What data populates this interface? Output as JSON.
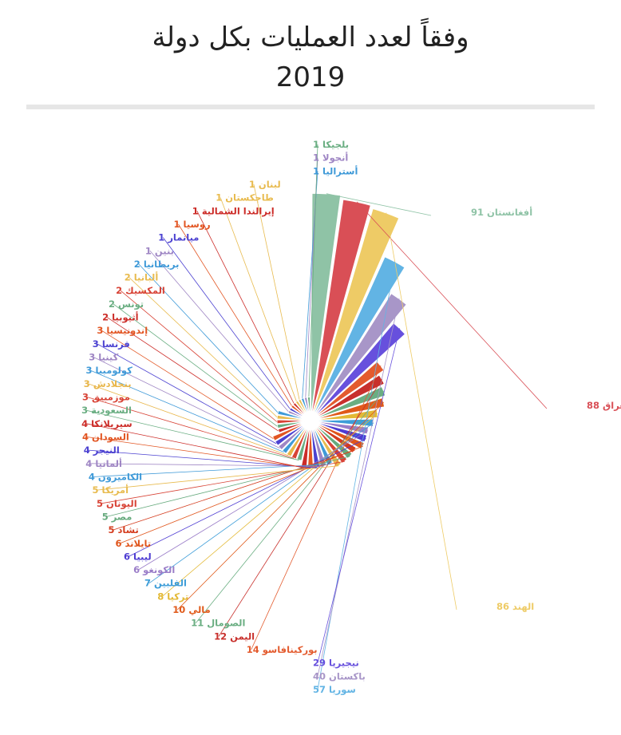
{
  "title": "وفقاً لعدد العمليات بكل دولة",
  "subtitle": "2019",
  "chart_data": {
    "type": "pie",
    "variant": "rose",
    "title": "وفقاً لعدد العمليات بكل دولة",
    "subtitle": "2019",
    "categories": [
      "أفغانستان",
      "العراق",
      "الهند",
      "سوريا",
      "باكستان",
      "نيجيريا",
      "بوركينافاسو",
      "اليمن",
      "الصومال",
      "مالي",
      "تركيا",
      "الفلبين",
      "الكونغو",
      "ليبيا",
      "تايلاند",
      "تشاد",
      "مصر",
      "اليونان",
      "أمريكا",
      "الكاميرون",
      "ألمانيا",
      "النيجر",
      "السودان",
      "سيريلانكا",
      "السعودية",
      "موزمبيق",
      "بنجلادش",
      "كولومبيا",
      "كينيا",
      "فرنسا",
      "إندونيسيا",
      "أثيوبيا",
      "تونس",
      "المكسيك",
      "ألبانيا",
      "بريطانيا",
      "بنين",
      "ميانمار",
      "روسيا",
      "إيرالندا الشمالية",
      "طاجكستان",
      "لبنان",
      "أستراليا",
      "أنجولا",
      "بلجيكا"
    ],
    "values": [
      91,
      88,
      86,
      57,
      40,
      29,
      14,
      12,
      11,
      10,
      8,
      7,
      6,
      6,
      6,
      5,
      5,
      5,
      5,
      4,
      4,
      4,
      4,
      4,
      3,
      3,
      3,
      3,
      3,
      3,
      3,
      2,
      2,
      2,
      2,
      2,
      1,
      1,
      1,
      1,
      1,
      1,
      1,
      1,
      1
    ],
    "colors": [
      "#8fc3a6",
      "#d94f56",
      "#eecb66",
      "#62b4e4",
      "#a896c8",
      "#6750dd",
      "#e35b2e",
      "#c8302c",
      "#6aae82",
      "#e05a1a",
      "#e3b935",
      "#3d9dd8",
      "#9a7dc8",
      "#4d3bd2",
      "#e0541a",
      "#d43c1e",
      "#66aa7d",
      "#d84336",
      "#e8bb4f",
      "#3f9ad8",
      "#9f86c4",
      "#4c42d1",
      "#e25522",
      "#cc2c28",
      "#6aae82",
      "#d84336",
      "#e8b64a",
      "#3f9ad8",
      "#9f86c4",
      "#4c42d1",
      "#e25522",
      "#cc2c28",
      "#6aae82",
      "#d84336",
      "#e8bb4f",
      "#3f9ad8",
      "#9f86c4",
      "#4c42d1",
      "#e25522",
      "#cc2c28",
      "#e8bb4f",
      "#e8bb4f",
      "#3f9ad8",
      "#9f86c4",
      "#6aae82"
    ],
    "legend": "none"
  }
}
